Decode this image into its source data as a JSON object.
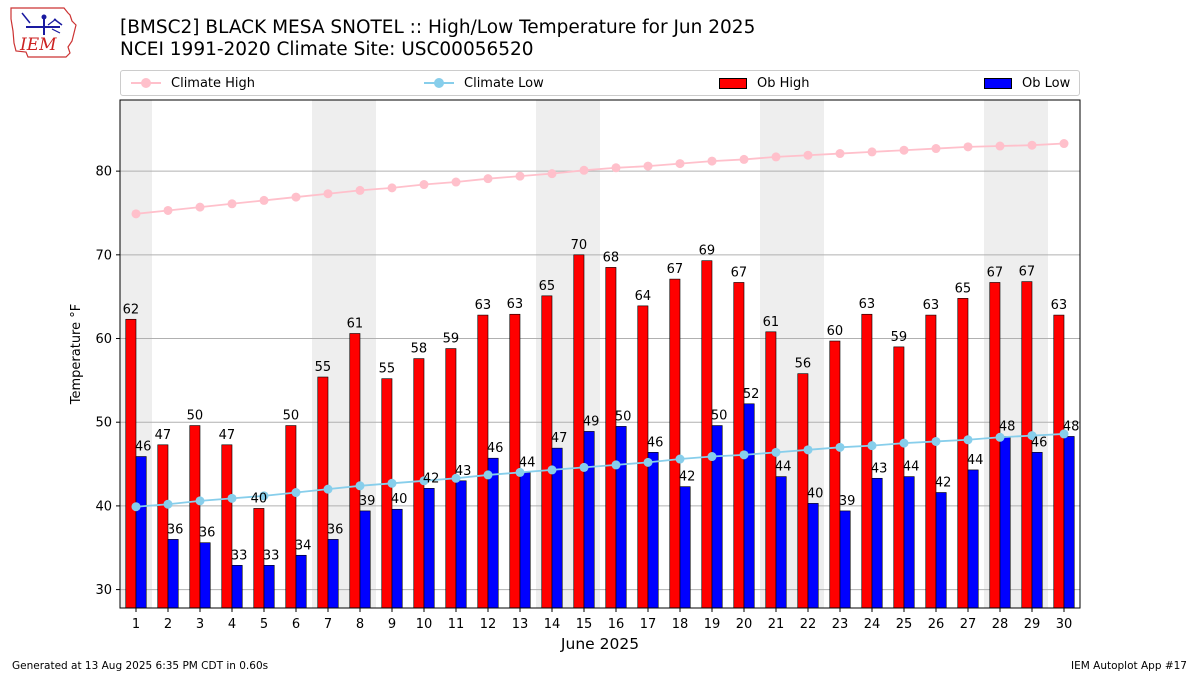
{
  "logo": {
    "text": "IEM"
  },
  "header": {
    "title_line1": "[BMSC2] BLACK MESA SNOTEL :: High/Low Temperature for Jun 2025",
    "title_line2": "NCEI 1991-2020 Climate Site: USC00056520"
  },
  "legend": {
    "climate_high": "Climate High",
    "climate_low": "Climate Low",
    "ob_high": "Ob High",
    "ob_low": "Ob Low"
  },
  "colors": {
    "ob_high": "#ff0000",
    "ob_low": "#0000ff",
    "climate_high": "#ffc0cb",
    "climate_low": "#87ceeb",
    "weekend_shade": "#eeeeee",
    "grid": "#b0b0b0"
  },
  "chart_data": {
    "type": "bar",
    "xlabel": "June 2025",
    "ylabel": "Temperature °F",
    "ylim": [
      27.8,
      88.5
    ],
    "yticks": [
      30,
      40,
      50,
      60,
      70,
      80
    ],
    "grid": "horizontal",
    "legend_placement": "top",
    "weekend_days": [
      1,
      7,
      8,
      14,
      15,
      21,
      22,
      28,
      29
    ],
    "categories": [
      "1",
      "2",
      "3",
      "4",
      "5",
      "6",
      "7",
      "8",
      "9",
      "10",
      "11",
      "12",
      "13",
      "14",
      "15",
      "16",
      "17",
      "18",
      "19",
      "20",
      "21",
      "22",
      "23",
      "24",
      "25",
      "26",
      "27",
      "28",
      "29",
      "30"
    ],
    "series": [
      {
        "name": "Ob High",
        "kind": "bar",
        "values": [
          62.3,
          47.3,
          49.6,
          47.3,
          39.7,
          49.6,
          55.4,
          60.6,
          55.2,
          57.6,
          58.8,
          62.8,
          62.9,
          65.1,
          70.0,
          68.5,
          63.9,
          67.1,
          69.3,
          66.7,
          60.8,
          55.8,
          59.7,
          62.9,
          59.0,
          62.8,
          64.8,
          66.7,
          66.8,
          62.8
        ],
        "labels": [
          "62",
          "47",
          "50",
          "47",
          "40",
          "50",
          "55",
          "61",
          "55",
          "58",
          "59",
          "63",
          "63",
          "65",
          "70",
          "68",
          "64",
          "67",
          "69",
          "67",
          "61",
          "56",
          "60",
          "63",
          "59",
          "63",
          "65",
          "67",
          "67",
          "63"
        ]
      },
      {
        "name": "Ob Low",
        "kind": "bar",
        "values": [
          45.9,
          36.0,
          35.6,
          32.9,
          32.9,
          34.1,
          36.0,
          39.4,
          39.6,
          42.1,
          43.0,
          45.7,
          44.0,
          46.9,
          48.9,
          49.5,
          46.4,
          42.3,
          49.6,
          52.2,
          43.5,
          40.3,
          39.4,
          43.3,
          43.5,
          41.6,
          44.3,
          48.3,
          46.4,
          48.3
        ],
        "labels": [
          "46",
          "36",
          "36",
          "33",
          "33",
          "34",
          "36",
          "39",
          "40",
          "42",
          "43",
          "46",
          "44",
          "47",
          "49",
          "50",
          "46",
          "42",
          "50",
          "52",
          "44",
          "40",
          "39",
          "43",
          "44",
          "42",
          "44",
          "48",
          "46",
          "48"
        ]
      },
      {
        "name": "Climate High",
        "kind": "line",
        "values": [
          74.9,
          75.3,
          75.7,
          76.1,
          76.5,
          76.9,
          77.3,
          77.7,
          78.0,
          78.4,
          78.7,
          79.1,
          79.4,
          79.7,
          80.1,
          80.4,
          80.6,
          80.9,
          81.2,
          81.4,
          81.7,
          81.9,
          82.1,
          82.3,
          82.5,
          82.7,
          82.9,
          83.0,
          83.1,
          83.3
        ]
      },
      {
        "name": "Climate Low",
        "kind": "line",
        "values": [
          39.9,
          40.2,
          40.6,
          40.9,
          41.2,
          41.6,
          42.0,
          42.4,
          42.7,
          43.0,
          43.3,
          43.7,
          44.0,
          44.3,
          44.6,
          44.9,
          45.2,
          45.6,
          45.9,
          46.1,
          46.4,
          46.7,
          47.0,
          47.2,
          47.5,
          47.7,
          47.9,
          48.2,
          48.4,
          48.6
        ]
      }
    ]
  },
  "footer": {
    "generated": "Generated at 13 Aug 2025 6:35 PM CDT in 0.60s",
    "app": "IEM Autoplot App #17"
  }
}
